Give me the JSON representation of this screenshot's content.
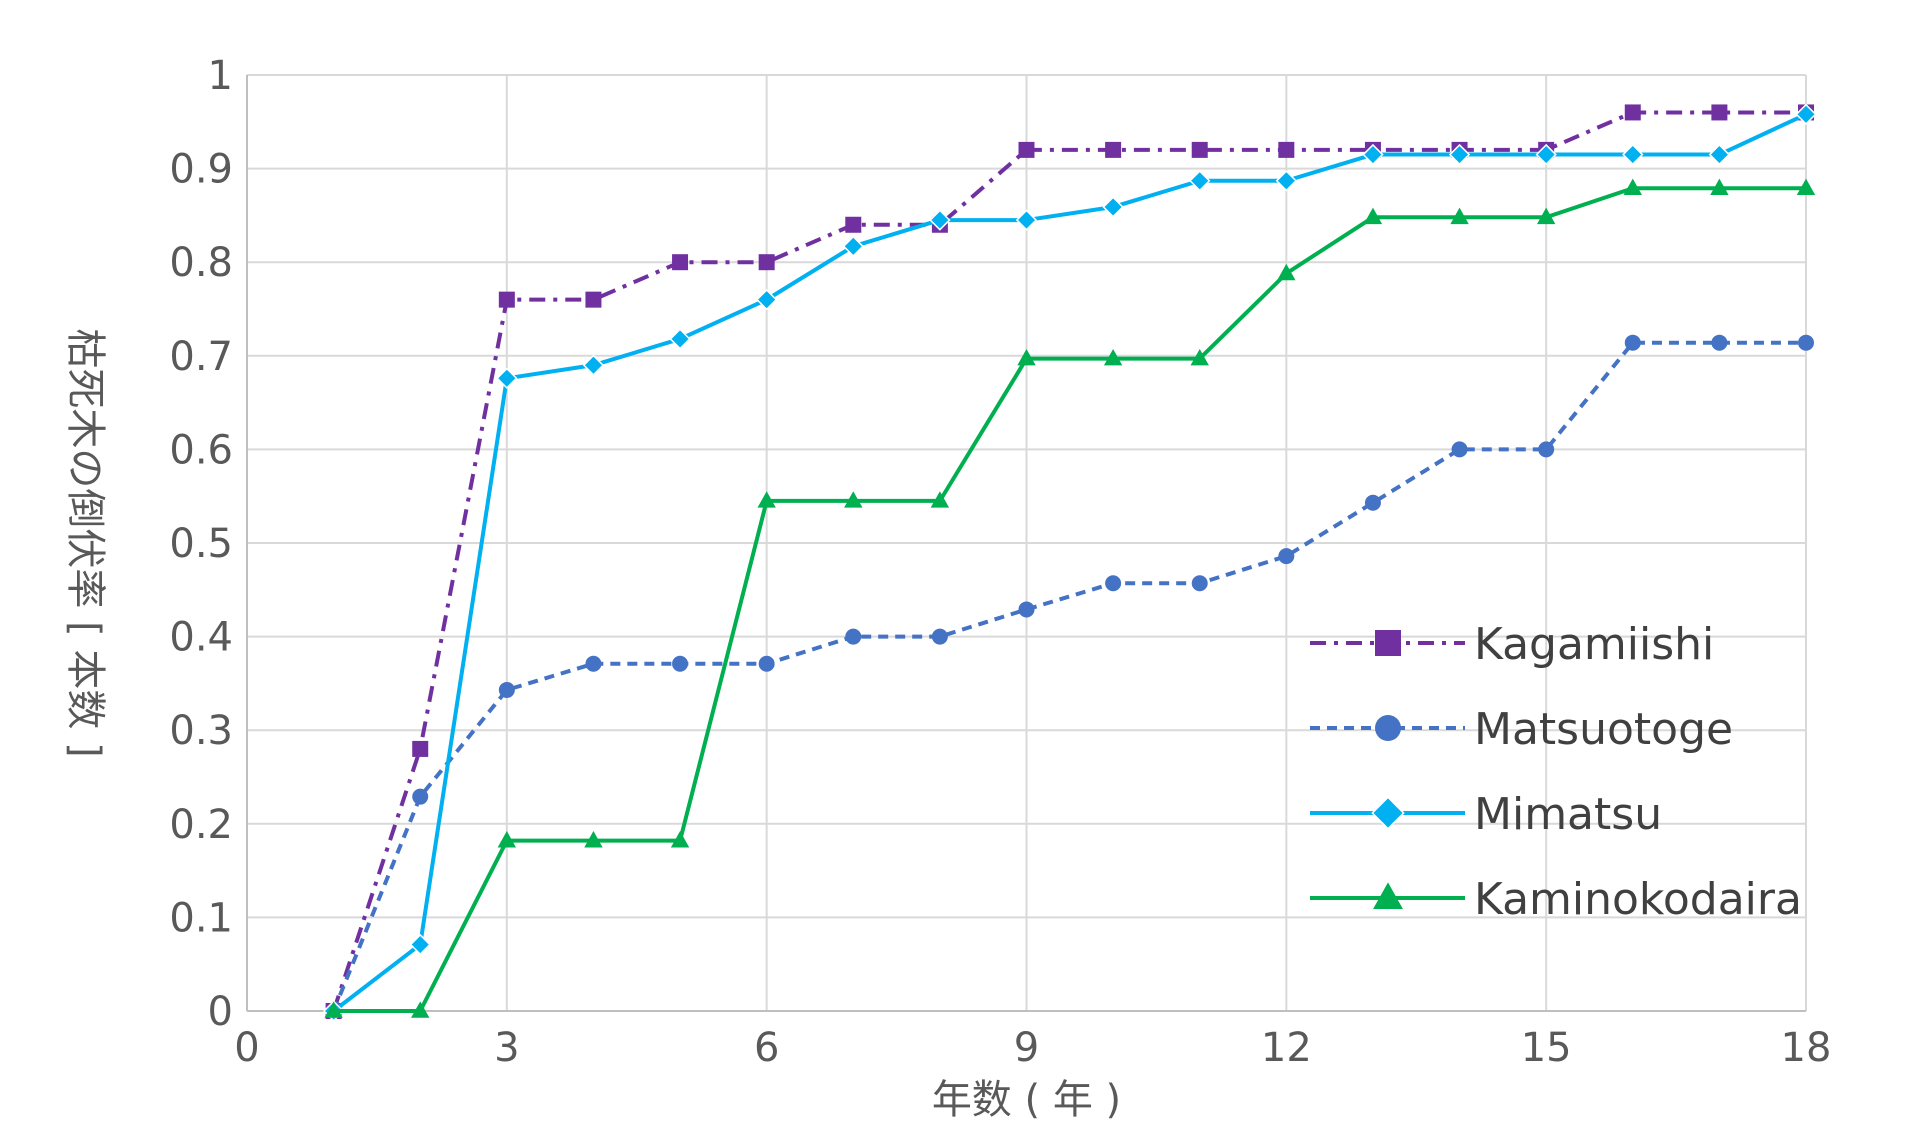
{
  "chart_data": {
    "type": "line",
    "xlabel": "年数 ( 年 )",
    "ylabel": "枯死木の倒伏率 [ 本数 ]",
    "xlim": [
      0,
      18
    ],
    "ylim": [
      0,
      1
    ],
    "xticks": [
      "0",
      "3",
      "6",
      "9",
      "12",
      "15",
      "18"
    ],
    "yticks": [
      "0",
      "0.1",
      "0.2",
      "0.3",
      "0.4",
      "0.5",
      "0.6",
      "0.7",
      "0.8",
      "0.9",
      "1"
    ],
    "grid": true,
    "legend": "right",
    "x": [
      1,
      2,
      3,
      4,
      5,
      6,
      7,
      8,
      9,
      10,
      11,
      12,
      13,
      14,
      15,
      16,
      17,
      18
    ],
    "series": [
      {
        "name": "Kagamiishi",
        "color": "#7030a0",
        "marker": "square",
        "dash": "dashdot",
        "values": [
          0,
          0.28,
          0.76,
          0.76,
          0.8,
          0.8,
          0.84,
          0.84,
          0.92,
          0.92,
          0.92,
          0.92,
          0.92,
          0.92,
          0.92,
          0.96,
          0.96,
          0.96
        ]
      },
      {
        "name": "Matsuotoge",
        "color": "#4472c4",
        "marker": "circle",
        "dash": "dashed",
        "values": [
          0,
          0.229,
          0.343,
          0.371,
          0.371,
          0.371,
          0.4,
          0.4,
          0.429,
          0.457,
          0.457,
          0.486,
          0.543,
          0.6,
          0.6,
          0.714,
          0.714,
          0.714
        ]
      },
      {
        "name": "Mimatsu",
        "color": "#00b0f0",
        "marker": "diamond",
        "dash": "solid",
        "values": [
          0,
          0.071,
          0.676,
          0.69,
          0.718,
          0.76,
          0.817,
          0.845,
          0.845,
          0.859,
          0.887,
          0.887,
          0.915,
          0.915,
          0.915,
          0.915,
          0.915,
          0.958
        ]
      },
      {
        "name": "Kaminokodaira",
        "color": "#00b050",
        "marker": "triangle",
        "dash": "solid",
        "values": [
          0,
          0,
          0.182,
          0.182,
          0.182,
          0.545,
          0.545,
          0.545,
          0.697,
          0.697,
          0.697,
          0.788,
          0.848,
          0.848,
          0.848,
          0.879,
          0.879,
          0.879
        ]
      }
    ]
  }
}
